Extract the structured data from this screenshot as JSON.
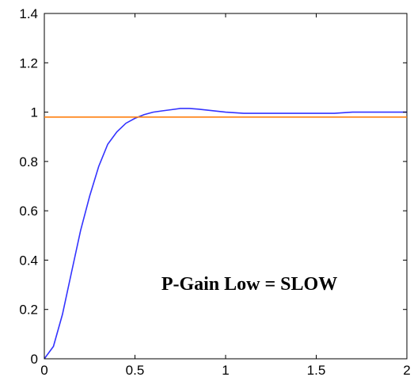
{
  "chart_data": {
    "type": "line",
    "title": "",
    "xlabel": "",
    "ylabel": "",
    "xlim": [
      0,
      2
    ],
    "ylim": [
      0,
      1.4
    ],
    "xticks": [
      "0",
      "0.5",
      "1",
      "1.5",
      "2"
    ],
    "yticks": [
      "0",
      "0.2",
      "0.4",
      "0.6",
      "0.8",
      "1",
      "1.2",
      "1.4"
    ],
    "grid": false,
    "annotation": "P-Gain Low = SLOW",
    "series": [
      {
        "color": "#3333ff",
        "x": [
          0,
          0.05,
          0.1,
          0.15,
          0.2,
          0.25,
          0.3,
          0.35,
          0.4,
          0.45,
          0.5,
          0.55,
          0.6,
          0.65,
          0.7,
          0.75,
          0.8,
          0.85,
          0.9,
          0.95,
          1.0,
          1.1,
          1.2,
          1.3,
          1.4,
          1.5,
          1.6,
          1.7,
          1.8,
          1.9,
          2.0
        ],
        "y": [
          0,
          0.05,
          0.18,
          0.35,
          0.52,
          0.66,
          0.78,
          0.87,
          0.92,
          0.955,
          0.975,
          0.99,
          1.0,
          1.005,
          1.01,
          1.015,
          1.015,
          1.012,
          1.008,
          1.004,
          1.0,
          0.995,
          0.995,
          0.995,
          0.995,
          0.995,
          0.995,
          1.0,
          1.0,
          1.0,
          1.0
        ]
      },
      {
        "color": "#ff7f0e",
        "x": [
          0,
          2.0
        ],
        "y": [
          0.98,
          0.98
        ]
      }
    ]
  }
}
